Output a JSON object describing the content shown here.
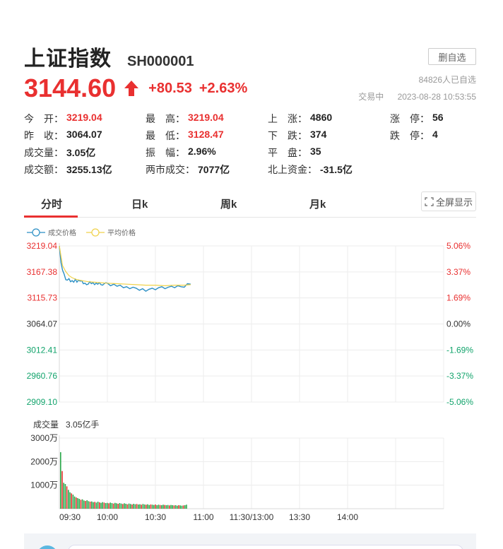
{
  "header": {
    "name": "上证指数",
    "code": "SH000001",
    "watch_button": "删自选",
    "watch_count": "84826人已自选",
    "trade_status": "交易中",
    "timestamp": "2023-08-28 10:53:55"
  },
  "quote": {
    "price": "3144.60",
    "change": "+80.53",
    "change_pct": "+2.63%",
    "up_color": "#e93030",
    "down_color": "#11a36b"
  },
  "stats": {
    "open": {
      "label": "今　开：",
      "value": "3219.04"
    },
    "high": {
      "label": "最　高：",
      "value": "3219.04"
    },
    "advance": {
      "label": "上　涨：",
      "value": "4860"
    },
    "limit_up": {
      "label": "涨　停：",
      "value": "56"
    },
    "prev_close": {
      "label": "昨　收：",
      "value": "3064.07"
    },
    "low": {
      "label": "最　低：",
      "value": "3128.47"
    },
    "decline": {
      "label": "下　跌：",
      "value": "374"
    },
    "limit_down": {
      "label": "跌　停：",
      "value": "4"
    },
    "volume": {
      "label": "成交量：",
      "value": "3.05亿"
    },
    "amplitude": {
      "label": "振　幅：",
      "value": "2.96%"
    },
    "flat": {
      "label": "平　盘：",
      "value": "35"
    },
    "turnover": {
      "label": "成交额：",
      "value": "3255.13亿"
    },
    "two_market": {
      "label": "两市成交：",
      "value": "7077亿"
    },
    "northbound": {
      "label": "北上资金：",
      "value": "-31.5亿"
    }
  },
  "tabs": [
    {
      "label": "分时",
      "active": true
    },
    {
      "label": "日k",
      "active": false
    },
    {
      "label": "周k",
      "active": false
    },
    {
      "label": "月k",
      "active": false
    }
  ],
  "fullscreen_label": "全屏显示",
  "chart_data": {
    "type": "line",
    "legend": [
      "成交价格",
      "平均价格"
    ],
    "price_ticks": [
      "3219.04",
      "3167.38",
      "3115.73",
      "3064.07",
      "3012.41",
      "2960.76",
      "2909.10"
    ],
    "pct_ticks": [
      "5.06%",
      "3.37%",
      "1.69%",
      "0.00%",
      "-1.69%",
      "-3.37%",
      "-5.06%"
    ],
    "ylim": [
      2909.1,
      3219.04
    ],
    "x_ticks": [
      "09:30",
      "10:00",
      "10:30",
      "11:00",
      "11:30/13:00",
      "13:30",
      "14:00"
    ],
    "x_range_minutes": [
      0,
      240
    ],
    "x_tick_minutes": [
      0,
      30,
      60,
      90,
      120,
      150,
      180
    ],
    "series": [
      {
        "name": "成交价格",
        "color": "#2b8fc4",
        "x": [
          0,
          1,
          2,
          3,
          4,
          5,
          6,
          7,
          8,
          9,
          10,
          11,
          12,
          13,
          14,
          15,
          16,
          17,
          18,
          19,
          20,
          21,
          22,
          23,
          24,
          25,
          26,
          27,
          28,
          29,
          30,
          32,
          34,
          36,
          38,
          40,
          42,
          44,
          46,
          48,
          50,
          52,
          54,
          56,
          58,
          60,
          62,
          64,
          66,
          68,
          70,
          72,
          74,
          76,
          78,
          80,
          82
        ],
        "values": [
          3219,
          3186,
          3171,
          3163,
          3152,
          3151,
          3154,
          3148,
          3150,
          3147,
          3153,
          3147,
          3151,
          3149,
          3150,
          3144,
          3145,
          3142,
          3143,
          3148,
          3144,
          3146,
          3142,
          3145,
          3143,
          3146,
          3142,
          3141,
          3144,
          3146,
          3145,
          3140,
          3143,
          3139,
          3141,
          3136,
          3138,
          3134,
          3137,
          3135,
          3131,
          3134,
          3129,
          3133,
          3135,
          3132,
          3136,
          3138,
          3134,
          3137,
          3139,
          3136,
          3140,
          3138,
          3137,
          3144,
          3143
        ]
      },
      {
        "name": "平均价格",
        "color": "#f0d24a",
        "x": [
          0,
          2,
          4,
          6,
          8,
          10,
          14,
          18,
          22,
          26,
          30,
          36,
          42,
          48,
          54,
          60,
          66,
          72,
          78,
          82
        ],
        "values": [
          3219,
          3180,
          3168,
          3160,
          3156,
          3153,
          3150,
          3148,
          3147,
          3146,
          3145,
          3144,
          3143,
          3142,
          3141,
          3141,
          3140,
          3141,
          3141,
          3142
        ]
      }
    ]
  },
  "volume_chart": {
    "label": "成交量",
    "value": "3.05亿手",
    "ticks": [
      "3000万",
      "2000万",
      "1000万"
    ],
    "tick_values": [
      3000,
      2000,
      1000
    ],
    "ymax": 3000,
    "bars": [
      2400,
      1600,
      1100,
      1050,
      950,
      800,
      700,
      650,
      600,
      520,
      480,
      450,
      420,
      380,
      400,
      350,
      330,
      360,
      320,
      300,
      310,
      280,
      290,
      260,
      300,
      270,
      250,
      280,
      260,
      240,
      250,
      230,
      260,
      240,
      220,
      250,
      230,
      210,
      240,
      220,
      200,
      230,
      210,
      190,
      220,
      200,
      180,
      210,
      190,
      200,
      180,
      190,
      170,
      200,
      180,
      170,
      190,
      160,
      180,
      170,
      160,
      180,
      150,
      170,
      160,
      150,
      170,
      160,
      150,
      160,
      140,
      160,
      150,
      140,
      150,
      130,
      150,
      140,
      130,
      140,
      150,
      170
    ]
  }
}
